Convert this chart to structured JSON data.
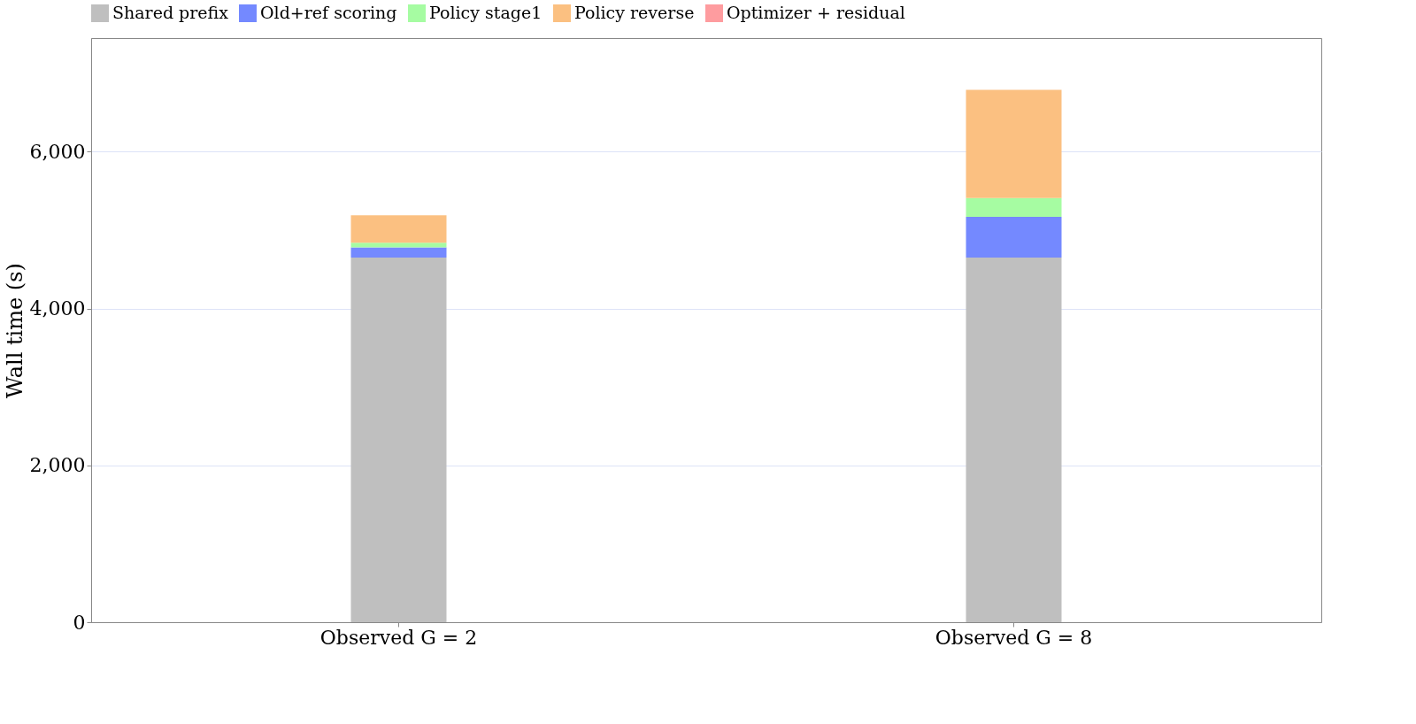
{
  "chart_data": {
    "type": "bar",
    "stacked": true,
    "ylabel": "Wall time (s)",
    "categories": [
      "Observed G = 2",
      "Observed G = 8"
    ],
    "series": [
      {
        "name": "Shared prefix",
        "color": "#bfbfbf",
        "values": [
          4650,
          4650
        ]
      },
      {
        "name": "Old+ref scoring",
        "color": "#7489ff",
        "values": [
          130,
          520
        ]
      },
      {
        "name": "Policy stage1",
        "color": "#a6fca2",
        "values": [
          60,
          240
        ]
      },
      {
        "name": "Policy reverse",
        "color": "#fbc081",
        "values": [
          350,
          1380
        ]
      },
      {
        "name": "Optimizer + residual",
        "color": "#fe9c9f",
        "values": [
          null,
          null
        ]
      }
    ],
    "ylim": [
      0,
      7450
    ],
    "yticks": [
      {
        "value": 0,
        "label": "0"
      },
      {
        "value": 2000,
        "label": "2,000"
      },
      {
        "value": 4000,
        "label": "4,000"
      },
      {
        "value": 6000,
        "label": "6,000"
      }
    ],
    "grid": "y",
    "legend": "top"
  }
}
